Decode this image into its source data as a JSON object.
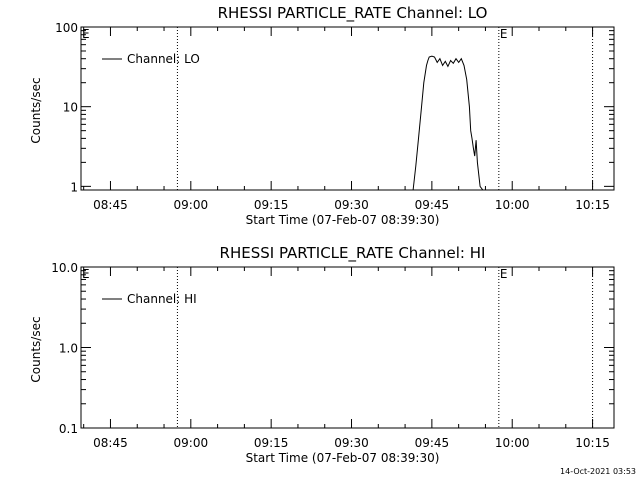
{
  "footer_timestamp": "14-Oct-2021 03:53",
  "chart_data": [
    {
      "type": "line",
      "title": "RHESSI PARTICLE_RATE Channel: LO",
      "xlabel": "Start Time (07-Feb-07 08:39:30)",
      "ylabel": "Counts/sec",
      "y_scale": "log",
      "ylim": [
        0.9,
        100
      ],
      "xlim": [
        "08:39:30",
        "10:19:00"
      ],
      "x_ticks": [
        "08:45",
        "09:00",
        "09:15",
        "09:30",
        "09:45",
        "10:00",
        "10:15"
      ],
      "y_ticks": [
        "1",
        "10",
        "100"
      ],
      "grid": false,
      "legend": {
        "label": "Channel: LO",
        "placement": "top-left"
      },
      "markers": [
        {
          "label": "E",
          "x": "08:39:30"
        },
        {
          "label": "",
          "x": "08:57:30"
        },
        {
          "label": "E",
          "x": "09:57:30"
        },
        {
          "label": "",
          "x": "10:15:00"
        }
      ],
      "series": [
        {
          "name": "Channel: LO",
          "color": "#000000",
          "x": [
            "09:41:30",
            "09:42:00",
            "09:42:30",
            "09:43:00",
            "09:43:30",
            "09:44:00",
            "09:44:15",
            "09:44:30",
            "09:45:00",
            "09:45:30",
            "09:46:00",
            "09:46:30",
            "09:47:00",
            "09:47:30",
            "09:48:00",
            "09:48:30",
            "09:49:00",
            "09:49:30",
            "09:50:00",
            "09:50:30",
            "09:51:00",
            "09:51:30",
            "09:52:00",
            "09:52:15",
            "09:52:30",
            "09:52:45",
            "09:53:00",
            "09:53:15",
            "09:53:30",
            "09:54:00",
            "09:54:30"
          ],
          "values": [
            0.9,
            1.8,
            4.0,
            9.0,
            20.0,
            33.0,
            38.0,
            42.0,
            43.0,
            42.0,
            36.0,
            40.0,
            33.0,
            37.0,
            32.0,
            38.0,
            35.0,
            40.0,
            36.0,
            40.0,
            33.0,
            22.0,
            10.0,
            5.0,
            4.0,
            3.0,
            2.4,
            3.8,
            2.0,
            1.0,
            0.9
          ]
        }
      ]
    },
    {
      "type": "line",
      "title": "RHESSI PARTICLE_RATE Channel: HI",
      "xlabel": "Start Time (07-Feb-07 08:39:30)",
      "ylabel": "Counts/sec",
      "y_scale": "log",
      "ylim": [
        0.1,
        10
      ],
      "xlim": [
        "08:39:30",
        "10:19:00"
      ],
      "x_ticks": [
        "08:45",
        "09:00",
        "09:15",
        "09:30",
        "09:45",
        "10:00",
        "10:15"
      ],
      "y_ticks": [
        "0.1",
        "1.0",
        "10.0"
      ],
      "grid": false,
      "legend": {
        "label": "Channel: HI",
        "placement": "top-left"
      },
      "markers": [
        {
          "label": "E",
          "x": "08:39:30"
        },
        {
          "label": "",
          "x": "08:57:30"
        },
        {
          "label": "E",
          "x": "09:57:30"
        },
        {
          "label": "",
          "x": "10:15:00"
        }
      ],
      "series": [
        {
          "name": "Channel: HI",
          "color": "#000000",
          "x": [],
          "values": []
        }
      ]
    }
  ]
}
